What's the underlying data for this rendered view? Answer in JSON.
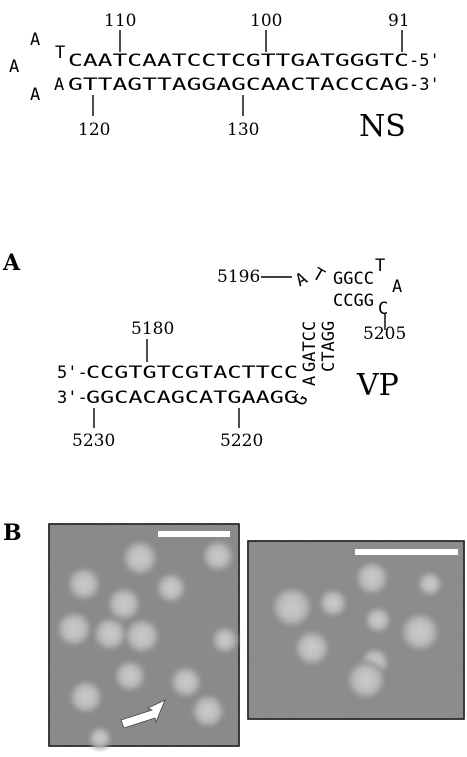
{
  "ns_hairpin": {
    "label": "NS",
    "loop_bases": [
      "A",
      "A",
      "A",
      "T"
    ],
    "top_strand": "CAATCAATCCTCGTTGATGGGTC",
    "top_end": "-5'",
    "bottom_strand": "GTTAGTTAGGAGCAACTACCCAG",
    "bottom_end": "-3'",
    "positions_top": [
      "110",
      "100",
      "91"
    ],
    "positions_bottom": [
      "120",
      "130"
    ]
  },
  "panel_a": {
    "letter": "A",
    "label": "VP",
    "top_strand": "CCGTGTCGTACTTCC",
    "top_start": "5'-",
    "bottom_strand": "GGCACAGCATGAAGG",
    "bottom_start": "3'-",
    "stem1_top": "GATCC",
    "stem1_bottom": "CTAGG",
    "stem1_extra_top": "A",
    "stem1_extra_bottom": "A",
    "side_bulge": "G",
    "stem2_top": "GGCC",
    "stem2_bottom": "CCGG",
    "stem2_t": "T",
    "loop_bases": [
      "T",
      "A",
      "C"
    ],
    "positions": [
      "5196",
      "5180",
      "5205",
      "5230",
      "5220"
    ]
  },
  "panel_b": {
    "letter": "B",
    "micrographs": [
      {
        "has_arrow": true,
        "scale_bar": true
      },
      {
        "has_arrow": false,
        "scale_bar": true
      }
    ]
  }
}
